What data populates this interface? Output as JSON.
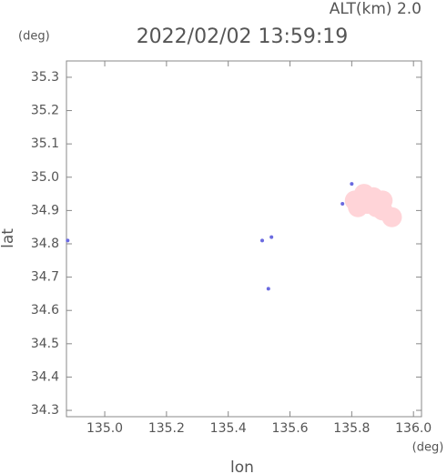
{
  "chart_data": {
    "type": "scatter",
    "title": "2022/02/02 13:59:19",
    "altitude_label": "ALT(km) 2.0",
    "y_unit": "(deg)",
    "x_unit": "(deg)",
    "xlabel": "lon",
    "ylabel": "lat",
    "xlim": [
      134.876,
      136.026
    ],
    "ylim": [
      34.281,
      35.349
    ],
    "xticks": [
      {
        "value": 135,
        "label": "135.0"
      },
      135.2,
      135.4,
      135.6,
      135.8,
      {
        "value": 136,
        "label": "136.0"
      }
    ],
    "yticks": [
      34.3,
      34.4,
      34.5,
      34.6,
      34.7,
      34.8,
      34.9,
      {
        "value": 35,
        "label": "35.0"
      },
      35.1,
      35.2,
      35.3
    ],
    "series": [
      {
        "color": "#ffd4d8",
        "x": [
          135.81,
          135.84,
          135.87,
          135.85,
          135.88,
          135.9,
          135.82,
          135.9,
          135.93
        ],
        "y": [
          34.93,
          34.95,
          34.94,
          34.92,
          34.91,
          34.9,
          34.91,
          34.93,
          34.88
        ]
      },
      {
        "color": "#6a6ae0",
        "x": [
          135.51,
          135.54,
          135.53,
          135.8,
          135.77,
          134.88
        ],
        "y": [
          34.81,
          34.82,
          34.665,
          34.98,
          34.92,
          34.81
        ]
      }
    ]
  }
}
